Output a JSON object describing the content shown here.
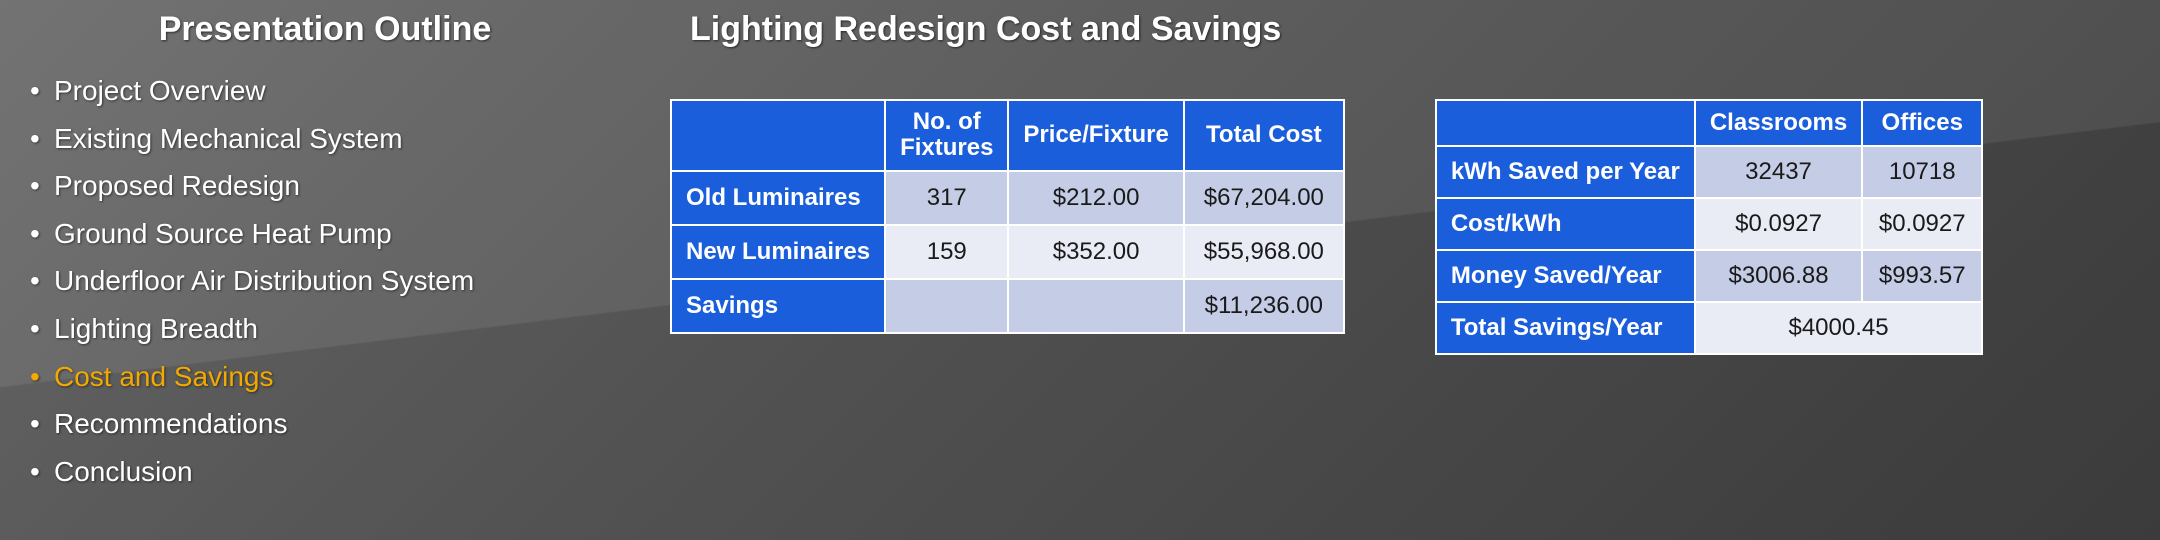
{
  "colors": {
    "header_bg": "#1b5edc",
    "header_fg": "#ffffff",
    "cell_light": "#e9ecf5",
    "cell_dark": "#c5cde6",
    "active_item": "#f2a900",
    "text": "#ffffff"
  },
  "outline": {
    "title": "Presentation Outline",
    "items": [
      {
        "label": "Project Overview"
      },
      {
        "label": "Existing Mechanical System"
      },
      {
        "label": "Proposed Redesign"
      },
      {
        "label": "Ground Source Heat Pump"
      },
      {
        "label": "Underfloor Air Distribution System"
      },
      {
        "label": "Lighting Breadth"
      },
      {
        "label": "Cost and Savings",
        "active": true
      },
      {
        "label": "Recommendations"
      },
      {
        "label": "Conclusion"
      }
    ]
  },
  "main": {
    "title": "Lighting Redesign Cost and Savings"
  },
  "table1": {
    "type": "table",
    "columns": [
      "",
      "No. of Fixtures",
      "Price/Fixture",
      "Total Cost"
    ],
    "rows": [
      {
        "label": "Old  Luminaires",
        "cells": [
          "317",
          "$212.00",
          "$67,204.00"
        ]
      },
      {
        "label": "New Luminaires",
        "cells": [
          "159",
          "$352.00",
          "$55,968.00"
        ]
      },
      {
        "label": "Savings",
        "cells": [
          "",
          "",
          "$11,236.00"
        ]
      }
    ]
  },
  "table2": {
    "type": "table",
    "columns": [
      "",
      "Classrooms",
      "Offices"
    ],
    "rows": [
      {
        "label": "kWh Saved per Year",
        "cells": [
          "32437",
          "10718"
        ]
      },
      {
        "label": "Cost/kWh",
        "cells": [
          "$0.0927",
          "$0.0927"
        ]
      },
      {
        "label": "Money Saved/Year",
        "cells": [
          "$3006.88",
          "$993.57"
        ]
      }
    ],
    "total": {
      "label": "Total Savings/Year",
      "value": "$4000.45"
    }
  }
}
